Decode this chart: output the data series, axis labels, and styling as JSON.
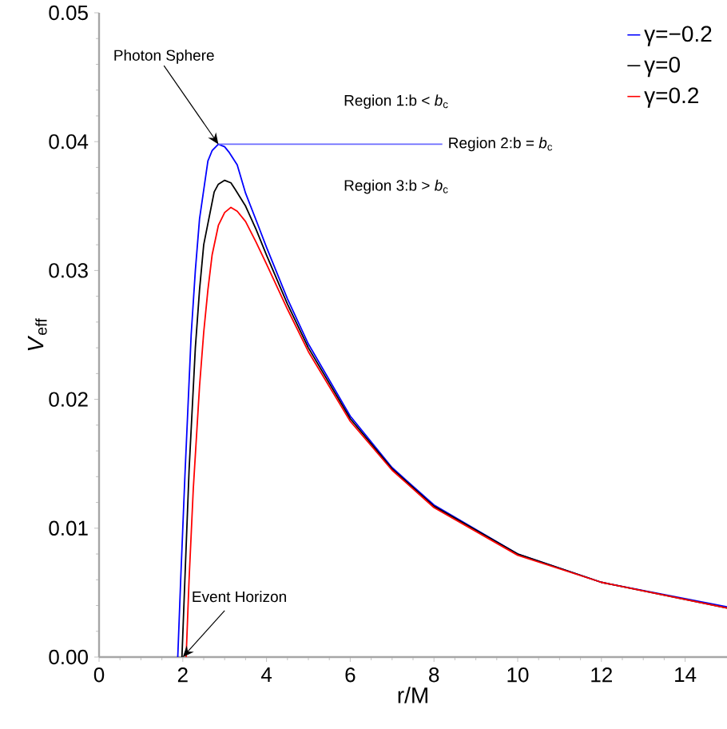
{
  "chart_data": {
    "type": "line",
    "xlabel": "r/M",
    "ylabel": "*V*$_{eff}$",
    "xlim": [
      0,
      15
    ],
    "ylim": [
      0,
      0.05
    ],
    "xticks": [
      0,
      2,
      4,
      6,
      8,
      10,
      12,
      14
    ],
    "yticks": [
      {
        "value": 0,
        "label": "0.00"
      },
      {
        "value": 0.01,
        "label": "0.01"
      },
      {
        "value": 0.02,
        "label": "0.02"
      },
      {
        "value": 0.03,
        "label": "0.03"
      },
      {
        "value": 0.04,
        "label": "0.04"
      },
      {
        "value": 0.05,
        "label": "0.05"
      }
    ],
    "series": [
      {
        "name": "γ=−0.2",
        "color": "#0000ff",
        "x": [
          1.88,
          1.95,
          2.05,
          2.2,
          2.3,
          2.4,
          2.6,
          2.7,
          2.85,
          3,
          3.1,
          3.3,
          3.5,
          3.8,
          4,
          4.5,
          5,
          6,
          7,
          8,
          10,
          12,
          15
        ],
        "values": [
          0,
          0.006,
          0.014,
          0.025,
          0.03,
          0.034,
          0.0385,
          0.0393,
          0.0398,
          0.0396,
          0.0392,
          0.0382,
          0.036,
          0.0335,
          0.0318,
          0.0278,
          0.0243,
          0.0187,
          0.0147,
          0.0118,
          0.008,
          0.0058,
          0.0039
        ]
      },
      {
        "name": "γ=0",
        "color": "#000000",
        "x": [
          1.98,
          2.05,
          2.15,
          2.3,
          2.4,
          2.5,
          2.75,
          2.85,
          3,
          3.15,
          3.25,
          3.5,
          3.75,
          4,
          4.5,
          5,
          6,
          7,
          8,
          10,
          12,
          15
        ],
        "values": [
          0,
          0.006,
          0.0145,
          0.024,
          0.0285,
          0.032,
          0.0361,
          0.0367,
          0.037,
          0.0368,
          0.0363,
          0.035,
          0.0332,
          0.0312,
          0.0274,
          0.024,
          0.0185,
          0.0146,
          0.0117,
          0.008,
          0.0058,
          0.0038
        ]
      },
      {
        "name": "γ=0.2",
        "color": "#ff0000",
        "x": [
          2.08,
          2.15,
          2.25,
          2.4,
          2.5,
          2.6,
          2.7,
          2.85,
          3,
          3.15,
          3.3,
          3.5,
          3.75,
          4,
          4.5,
          5,
          6,
          7,
          8,
          10,
          12,
          15
        ],
        "values": [
          0,
          0.006,
          0.013,
          0.021,
          0.0252,
          0.0285,
          0.0312,
          0.0335,
          0.0345,
          0.0349,
          0.0346,
          0.0338,
          0.0322,
          0.0305,
          0.027,
          0.0237,
          0.0183,
          0.0145,
          0.0116,
          0.0079,
          0.0058,
          0.0038
        ]
      },
      {
        "color": "#6b6bff",
        "x": [
          2.85,
          8.2
        ],
        "values": [
          0.0398,
          0.0398
        ]
      }
    ],
    "annotations": [
      {
        "text": "Photon Sphere",
        "x": 2.85,
        "y": 0.0398
      },
      {
        "text": "Event Horizon",
        "x": 2,
        "y": 0
      },
      "Region 1:b < *b*$_{c}$",
      "Region 2:b = *b*$_{c}$",
      "Region 3:b > *b*$_{c}$"
    ],
    "legend": "top right",
    "marker": "none",
    "line_style": "solid",
    "grid": false
  }
}
